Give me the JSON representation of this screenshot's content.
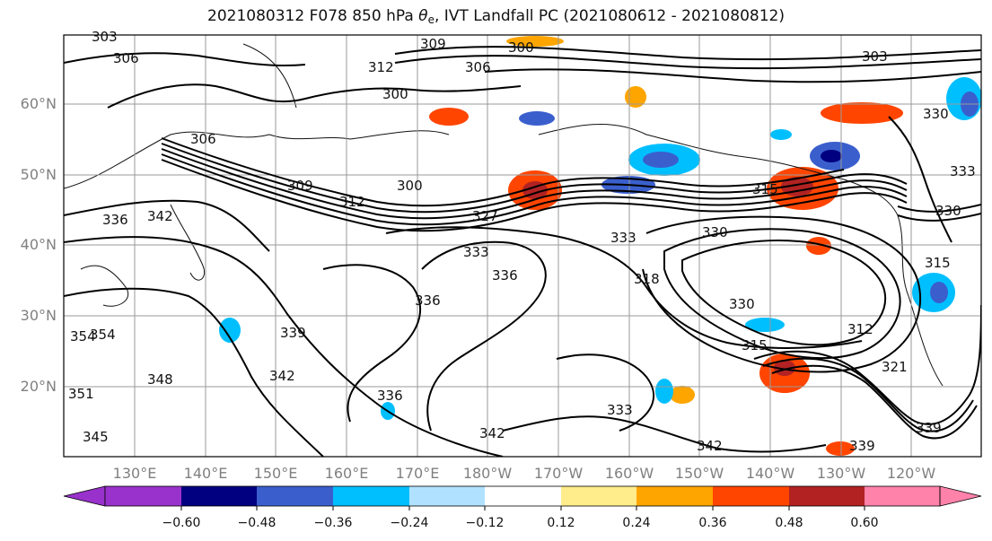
{
  "title": {
    "prefix": "2021080312 F078 850 hPa ",
    "variable": "θ",
    "variable_sub": "e",
    "suffix": ", IVT Landfall PC (2021080612 - 2021080812)"
  },
  "axes": {
    "lat_labels": [
      "60°N",
      "50°N",
      "40°N",
      "30°N",
      "20°N"
    ],
    "lon_labels": [
      "130°E",
      "140°E",
      "150°E",
      "160°E",
      "170°E",
      "180°W",
      "170°W",
      "160°W",
      "150°W",
      "140°W",
      "130°W",
      "120°W"
    ]
  },
  "colorbar": {
    "tick_labels": [
      "−0.60",
      "−0.48",
      "−0.36",
      "−0.24",
      "−0.12",
      "0.12",
      "0.24",
      "0.36",
      "0.48",
      "0.60"
    ],
    "colors": [
      "#9932cc",
      "#000080",
      "#3a5fcd",
      "#00bfff",
      "#b0e2ff",
      "#ffffff",
      "#ffec8b",
      "#ffa500",
      "#ff4500",
      "#b22222",
      "#ff82ab"
    ]
  },
  "contour_labels": [
    "303",
    "306",
    "309",
    "306",
    "300",
    "312",
    "300",
    "306",
    "300",
    "309",
    "312",
    "303",
    "330",
    "333",
    "336",
    "342",
    "327",
    "333",
    "336",
    "330",
    "318",
    "315",
    "333",
    "330",
    "339",
    "336",
    "354",
    "354",
    "348",
    "342",
    "351",
    "345",
    "336",
    "333",
    "342",
    "342",
    "339",
    "330",
    "315",
    "312",
    "321",
    "315",
    "339"
  ]
}
